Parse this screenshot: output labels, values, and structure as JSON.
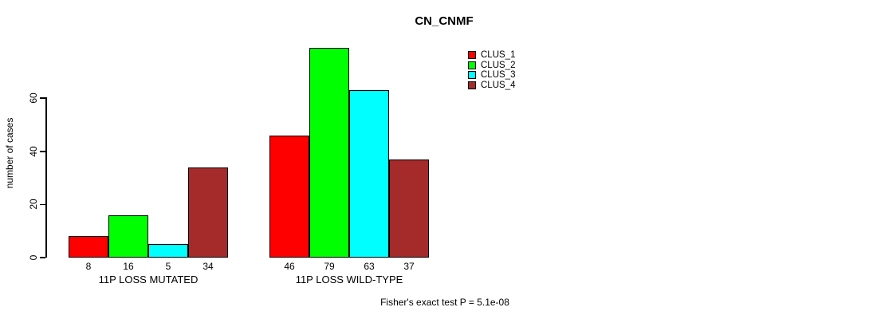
{
  "chart_data": {
    "type": "bar",
    "title": "CN_CNMF",
    "ylabel": "number of cases",
    "xlabel": "",
    "categories": [
      "11P LOSS MUTATED",
      "11P LOSS WILD-TYPE"
    ],
    "series": [
      {
        "name": "CLUS_1",
        "color": "#FF0000",
        "values": [
          8,
          46
        ]
      },
      {
        "name": "CLUS_2",
        "color": "#00FF00",
        "values": [
          16,
          79
        ]
      },
      {
        "name": "CLUS_3",
        "color": "#00FFFF",
        "values": [
          5,
          63
        ]
      },
      {
        "name": "CLUS_4",
        "color": "#A52A2A",
        "values": [
          34,
          37
        ]
      }
    ],
    "yticks": [
      0,
      20,
      40,
      60
    ],
    "ylim": [
      0,
      82
    ],
    "grid": false,
    "legend_position": "top-right",
    "bar_value_labels_shown": true,
    "annotation": "Fisher's exact test P = 5.1e-08"
  }
}
